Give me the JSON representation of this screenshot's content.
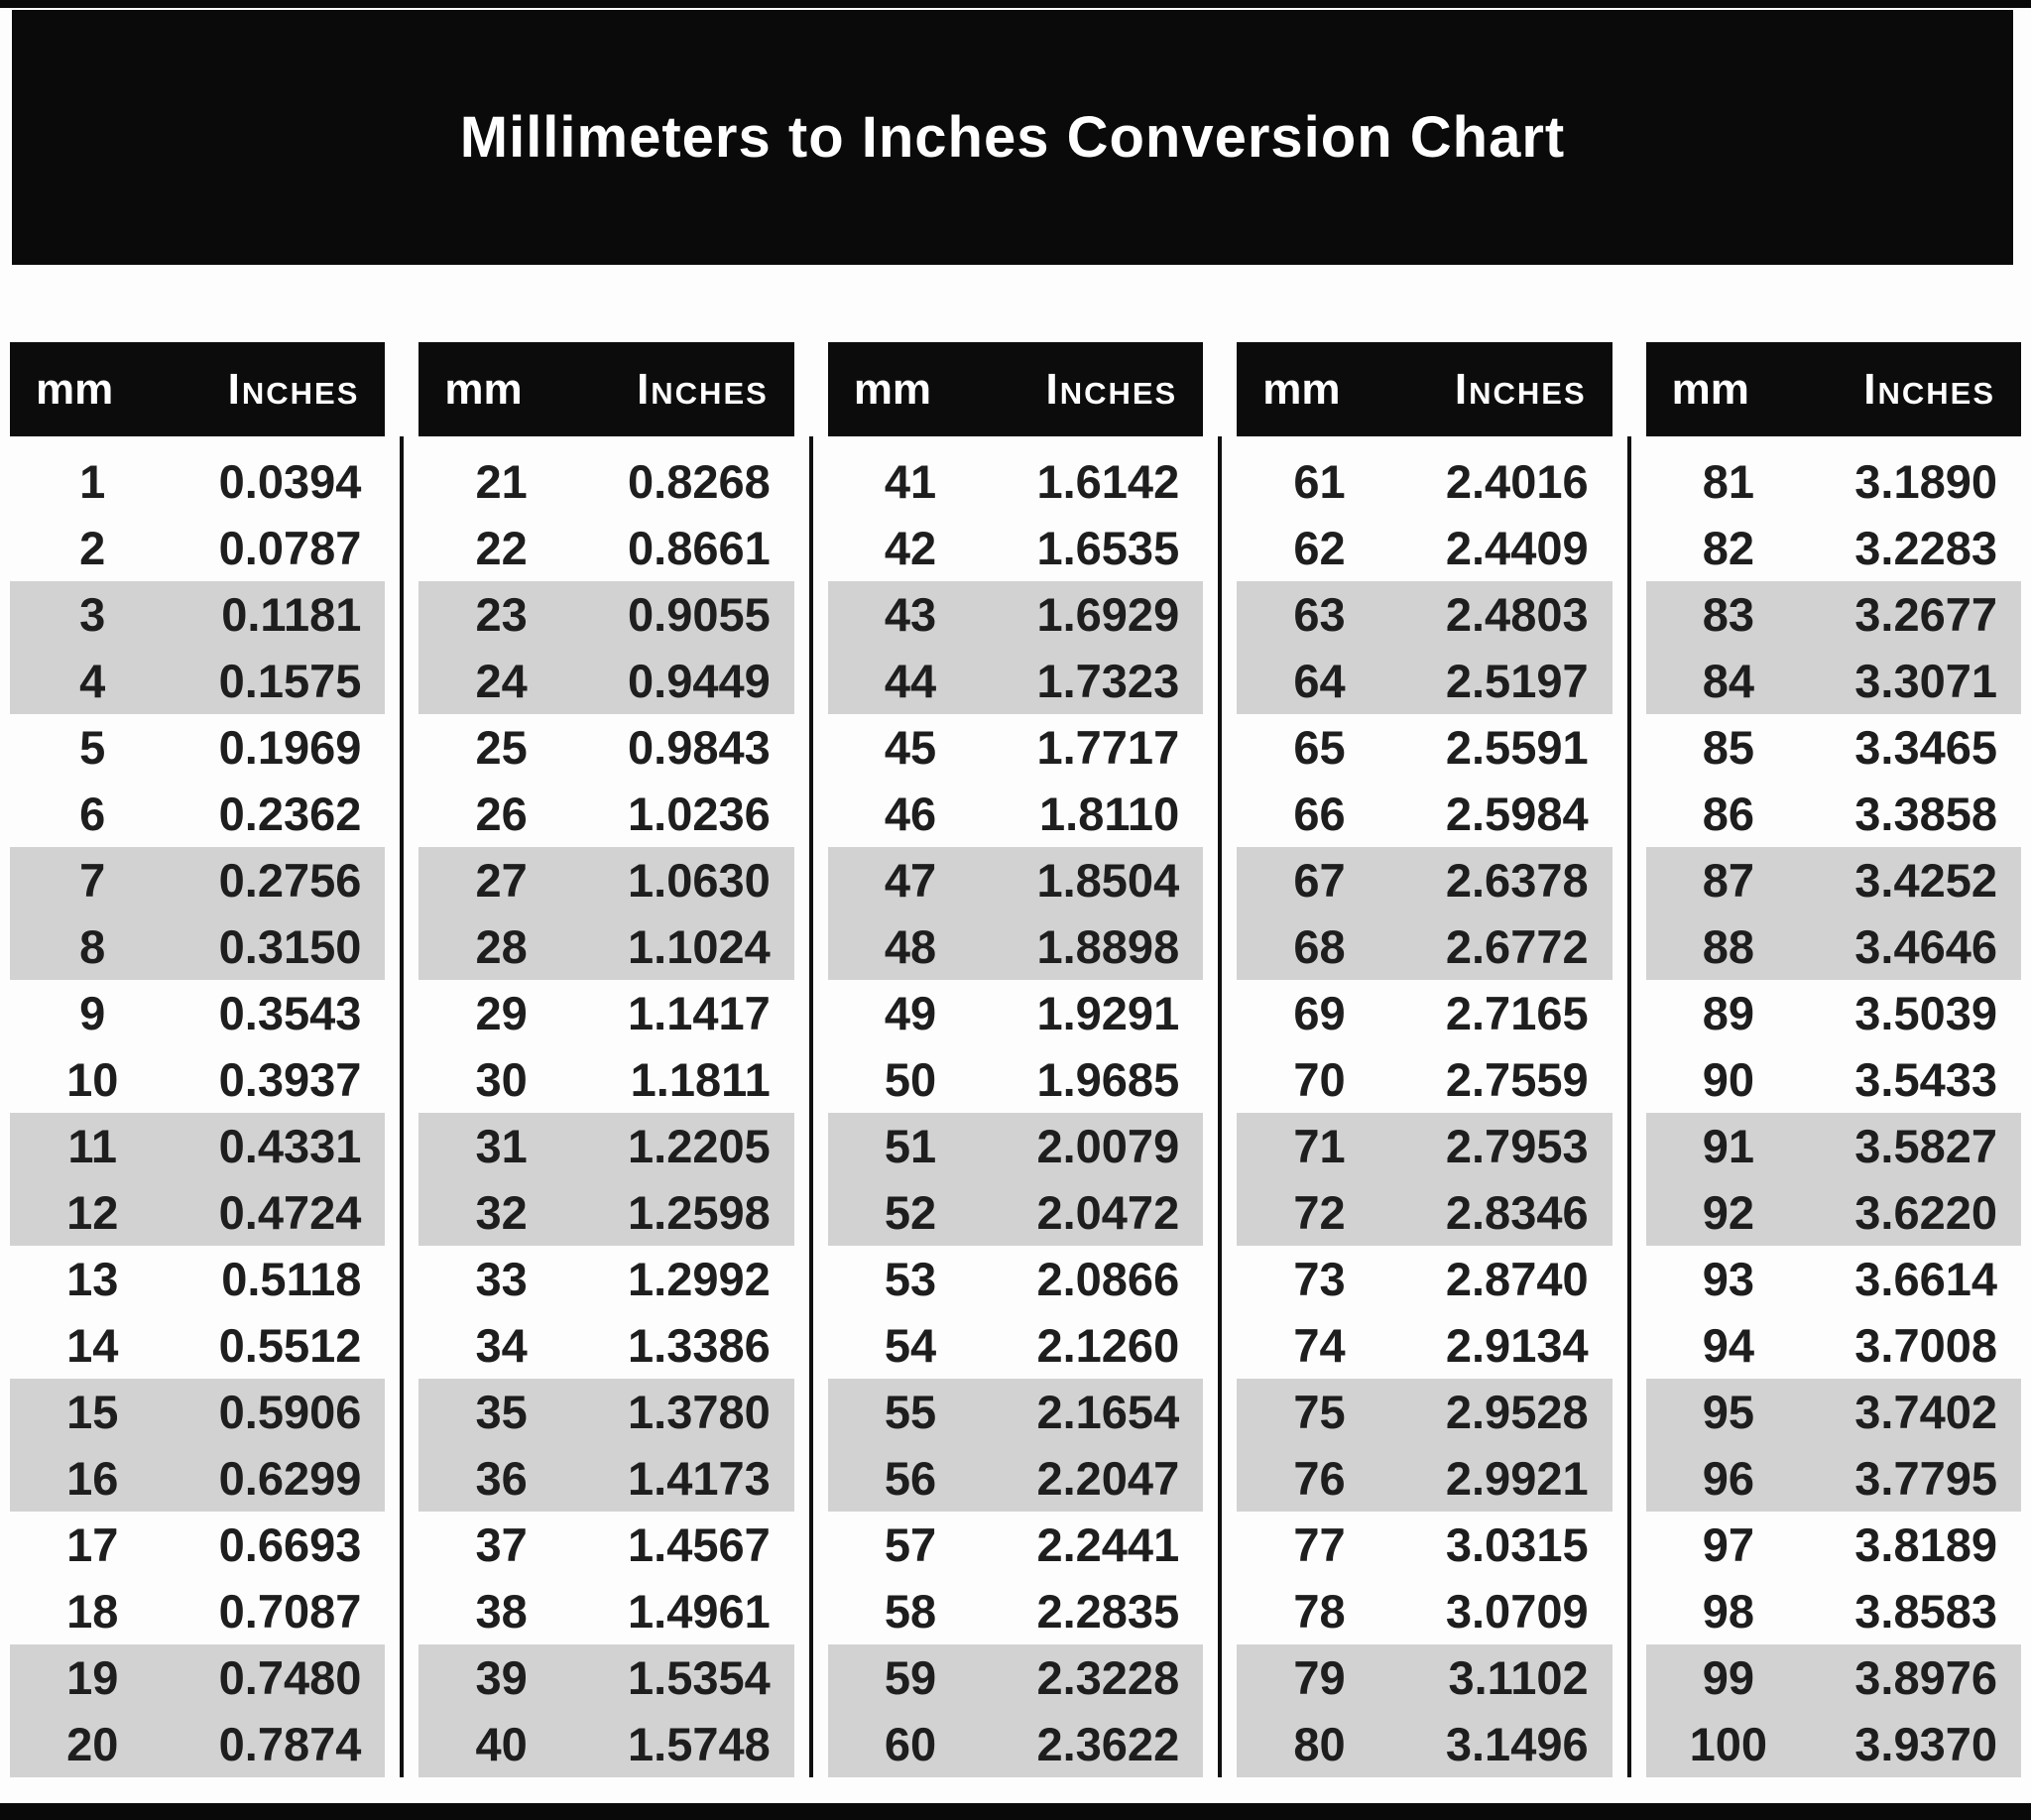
{
  "title": "Millimeters to Inches Conversion Chart",
  "column_headers": {
    "mm": "mm",
    "inches": "Inches"
  },
  "colors": {
    "bar_background": "#0a0a0a",
    "header_background": "#0c0c0c",
    "shaded_row": "#d2d2d2",
    "divider": "#101010",
    "header_text": "#ffffff",
    "row_text": "#1e1e1e"
  },
  "tables": [
    {
      "rows": [
        [
          "1",
          "0.0394"
        ],
        [
          "2",
          "0.0787"
        ],
        [
          "3",
          "0.1181"
        ],
        [
          "4",
          "0.1575"
        ],
        [
          "5",
          "0.1969"
        ],
        [
          "6",
          "0.2362"
        ],
        [
          "7",
          "0.2756"
        ],
        [
          "8",
          "0.3150"
        ],
        [
          "9",
          "0.3543"
        ],
        [
          "10",
          "0.3937"
        ],
        [
          "11",
          "0.4331"
        ],
        [
          "12",
          "0.4724"
        ],
        [
          "13",
          "0.5118"
        ],
        [
          "14",
          "0.5512"
        ],
        [
          "15",
          "0.5906"
        ],
        [
          "16",
          "0.6299"
        ],
        [
          "17",
          "0.6693"
        ],
        [
          "18",
          "0.7087"
        ],
        [
          "19",
          "0.7480"
        ],
        [
          "20",
          "0.7874"
        ]
      ]
    },
    {
      "rows": [
        [
          "21",
          "0.8268"
        ],
        [
          "22",
          "0.8661"
        ],
        [
          "23",
          "0.9055"
        ],
        [
          "24",
          "0.9449"
        ],
        [
          "25",
          "0.9843"
        ],
        [
          "26",
          "1.0236"
        ],
        [
          "27",
          "1.0630"
        ],
        [
          "28",
          "1.1024"
        ],
        [
          "29",
          "1.1417"
        ],
        [
          "30",
          "1.1811"
        ],
        [
          "31",
          "1.2205"
        ],
        [
          "32",
          "1.2598"
        ],
        [
          "33",
          "1.2992"
        ],
        [
          "34",
          "1.3386"
        ],
        [
          "35",
          "1.3780"
        ],
        [
          "36",
          "1.4173"
        ],
        [
          "37",
          "1.4567"
        ],
        [
          "38",
          "1.4961"
        ],
        [
          "39",
          "1.5354"
        ],
        [
          "40",
          "1.5748"
        ]
      ]
    },
    {
      "rows": [
        [
          "41",
          "1.6142"
        ],
        [
          "42",
          "1.6535"
        ],
        [
          "43",
          "1.6929"
        ],
        [
          "44",
          "1.7323"
        ],
        [
          "45",
          "1.7717"
        ],
        [
          "46",
          "1.8110"
        ],
        [
          "47",
          "1.8504"
        ],
        [
          "48",
          "1.8898"
        ],
        [
          "49",
          "1.9291"
        ],
        [
          "50",
          "1.9685"
        ],
        [
          "51",
          "2.0079"
        ],
        [
          "52",
          "2.0472"
        ],
        [
          "53",
          "2.0866"
        ],
        [
          "54",
          "2.1260"
        ],
        [
          "55",
          "2.1654"
        ],
        [
          "56",
          "2.2047"
        ],
        [
          "57",
          "2.2441"
        ],
        [
          "58",
          "2.2835"
        ],
        [
          "59",
          "2.3228"
        ],
        [
          "60",
          "2.3622"
        ]
      ]
    },
    {
      "rows": [
        [
          "61",
          "2.4016"
        ],
        [
          "62",
          "2.4409"
        ],
        [
          "63",
          "2.4803"
        ],
        [
          "64",
          "2.5197"
        ],
        [
          "65",
          "2.5591"
        ],
        [
          "66",
          "2.5984"
        ],
        [
          "67",
          "2.6378"
        ],
        [
          "68",
          "2.6772"
        ],
        [
          "69",
          "2.7165"
        ],
        [
          "70",
          "2.7559"
        ],
        [
          "71",
          "2.7953"
        ],
        [
          "72",
          "2.8346"
        ],
        [
          "73",
          "2.8740"
        ],
        [
          "74",
          "2.9134"
        ],
        [
          "75",
          "2.9528"
        ],
        [
          "76",
          "2.9921"
        ],
        [
          "77",
          "3.0315"
        ],
        [
          "78",
          "3.0709"
        ],
        [
          "79",
          "3.1102"
        ],
        [
          "80",
          "3.1496"
        ]
      ]
    },
    {
      "rows": [
        [
          "81",
          "3.1890"
        ],
        [
          "82",
          "3.2283"
        ],
        [
          "83",
          "3.2677"
        ],
        [
          "84",
          "3.3071"
        ],
        [
          "85",
          "3.3465"
        ],
        [
          "86",
          "3.3858"
        ],
        [
          "87",
          "3.4252"
        ],
        [
          "88",
          "3.4646"
        ],
        [
          "89",
          "3.5039"
        ],
        [
          "90",
          "3.5433"
        ],
        [
          "91",
          "3.5827"
        ],
        [
          "92",
          "3.6220"
        ],
        [
          "93",
          "3.6614"
        ],
        [
          "94",
          "3.7008"
        ],
        [
          "95",
          "3.7402"
        ],
        [
          "96",
          "3.7795"
        ],
        [
          "97",
          "3.8189"
        ],
        [
          "98",
          "3.8583"
        ],
        [
          "99",
          "3.8976"
        ],
        [
          "100",
          "3.9370"
        ]
      ]
    }
  ]
}
